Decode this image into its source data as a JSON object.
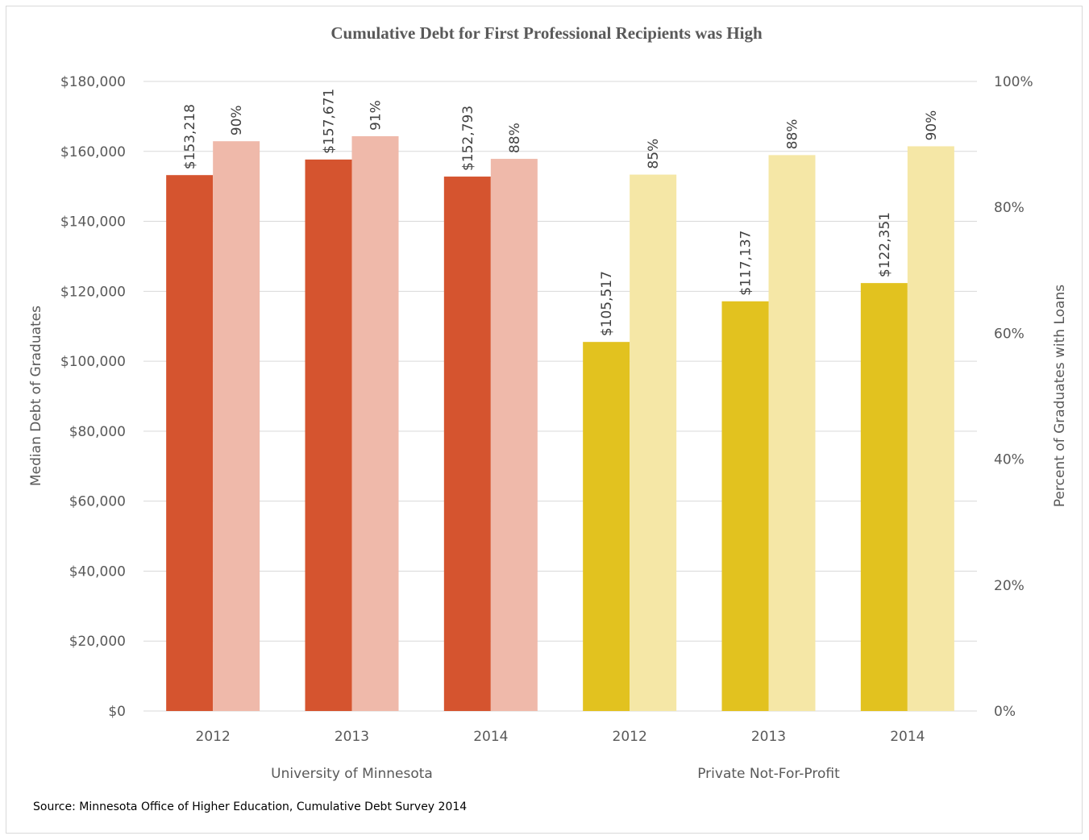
{
  "chart_data": {
    "type": "bar",
    "title": "Cumulative Debt for First Professional Recipients was High",
    "y_left_label": "Median Debt of Graduates",
    "y_right_label": "Percent of Graduates with Loans",
    "y_left_range": [
      0,
      180000
    ],
    "y_right_range": [
      0,
      100
    ],
    "y_left_ticks": [
      "$0",
      "$20,000",
      "$40,000",
      "$60,000",
      "$80,000",
      "$100,000",
      "$120,000",
      "$140,000",
      "$160,000",
      "$180,000"
    ],
    "y_right_ticks": [
      "0%",
      "20%",
      "40%",
      "60%",
      "80%",
      "100%"
    ],
    "grid": true,
    "groups": [
      {
        "name": "University of Minnesota",
        "debt_color": "#d5542f",
        "pct_color": "#efb9aa",
        "bars": [
          {
            "year": "2012",
            "debt": 153218,
            "debt_label": "$153,218",
            "pct": 90.5,
            "pct_label": "90%"
          },
          {
            "year": "2013",
            "debt": 157671,
            "debt_label": "$157,671",
            "pct": 91.3,
            "pct_label": "91%"
          },
          {
            "year": "2014",
            "debt": 152793,
            "debt_label": "$152,793",
            "pct": 87.7,
            "pct_label": "88%"
          }
        ]
      },
      {
        "name": "Private Not-For-Profit",
        "debt_color": "#e2c21f",
        "pct_color": "#f5e7a6",
        "bars": [
          {
            "year": "2012",
            "debt": 105517,
            "debt_label": "$105,517",
            "pct": 85.2,
            "pct_label": "85%"
          },
          {
            "year": "2013",
            "debt": 117137,
            "debt_label": "$117,137",
            "pct": 88.3,
            "pct_label": "88%"
          },
          {
            "year": "2014",
            "debt": 122351,
            "debt_label": "$122,351",
            "pct": 89.7,
            "pct_label": "90%"
          }
        ]
      }
    ]
  },
  "source": "Source: Minnesota Office of Higher Education, Cumulative Debt Survey 2014"
}
